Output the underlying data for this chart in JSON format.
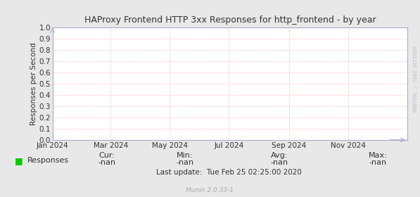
{
  "title": "HAProxy Frontend HTTP 3xx Responses for http_frontend - by year",
  "ylabel": "Responses per Second",
  "ylim": [
    0.0,
    1.0
  ],
  "yticks": [
    0.0,
    0.1,
    0.2,
    0.3,
    0.4,
    0.5,
    0.6,
    0.7,
    0.8,
    0.9,
    1.0
  ],
  "bg_color": "#e8e8e8",
  "plot_bg_color": "#ffffff",
  "grid_color": "#ff9999",
  "axis_color": "#aaaacc",
  "title_color": "#333333",
  "legend_label": "Responses",
  "legend_color": "#00cc00",
  "cur_val": "-nan",
  "min_val": "-nan",
  "avg_val": "-nan",
  "max_val": "-nan",
  "last_update": "Last update:  Tue Feb 25 02:25:00 2020",
  "munin_version": "Munin 2.0.33-1",
  "watermark": "RRDTOOL / TOBI OETIKER",
  "xstart": 1704067200,
  "xend": 1735689600,
  "xtick_labels": [
    "Jan 2024",
    "Mar 2024",
    "May 2024",
    "Jul 2024",
    "Sep 2024",
    "Nov 2024"
  ],
  "xtick_positions": [
    1704067200,
    1709251200,
    1714521600,
    1719792000,
    1725148800,
    1730419200
  ]
}
